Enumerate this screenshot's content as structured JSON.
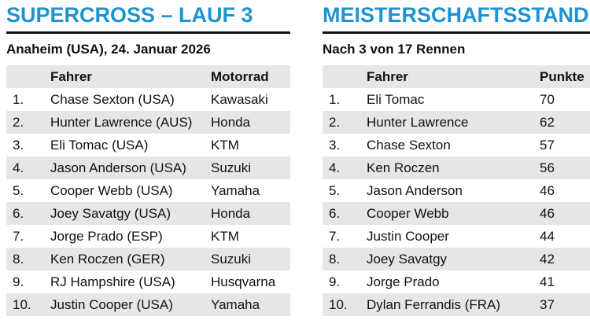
{
  "race": {
    "title": "SUPERCROSS – LAUF 3",
    "subtitle": "Anaheim (USA), 24. Januar 2026",
    "headers": {
      "rank": "",
      "driver": "Fahrer",
      "bike": "Motorrad"
    },
    "rows": [
      {
        "rank": "1.",
        "driver": "Chase Sexton (USA)",
        "bike": "Kawasaki"
      },
      {
        "rank": "2.",
        "driver": "Hunter Lawrence (AUS)",
        "bike": "Honda"
      },
      {
        "rank": "3.",
        "driver": "Eli Tomac (USA)",
        "bike": "KTM"
      },
      {
        "rank": "4.",
        "driver": "Jason Anderson (USA)",
        "bike": "Suzuki"
      },
      {
        "rank": "5.",
        "driver": "Cooper Webb (USA)",
        "bike": "Yamaha"
      },
      {
        "rank": "6.",
        "driver": "Joey Savatgy (USA)",
        "bike": "Honda"
      },
      {
        "rank": "7.",
        "driver": "Jorge Prado (ESP)",
        "bike": "KTM"
      },
      {
        "rank": "8.",
        "driver": "Ken Roczen (GER)",
        "bike": "Suzuki"
      },
      {
        "rank": "9.",
        "driver": "RJ Hampshire (USA)",
        "bike": "Husqvarna"
      },
      {
        "rank": "10.",
        "driver": "Justin Cooper (USA)",
        "bike": "Yamaha"
      }
    ]
  },
  "standings": {
    "title": "MEISTERSCHAFTSSTAND",
    "subtitle": "Nach 3 von 17 Rennen",
    "headers": {
      "rank": "",
      "driver": "Fahrer",
      "points": "Punkte"
    },
    "rows": [
      {
        "rank": "1.",
        "driver": "Eli Tomac",
        "points": "70"
      },
      {
        "rank": "2.",
        "driver": "Hunter Lawrence",
        "points": "62"
      },
      {
        "rank": "3.",
        "driver": "Chase Sexton",
        "points": "57"
      },
      {
        "rank": "4.",
        "driver": "Ken Roczen",
        "points": "56"
      },
      {
        "rank": "5.",
        "driver": "Jason Anderson",
        "points": "46"
      },
      {
        "rank": "6.",
        "driver": "Cooper Webb",
        "points": "46"
      },
      {
        "rank": "7.",
        "driver": "Justin Cooper",
        "points": "44"
      },
      {
        "rank": "8.",
        "driver": "Joey Savatgy",
        "points": "42"
      },
      {
        "rank": "9.",
        "driver": "Jorge Prado",
        "points": "41"
      },
      {
        "rank": "10.",
        "driver": "Dylan Ferrandis (FRA)",
        "points": "37"
      }
    ]
  }
}
